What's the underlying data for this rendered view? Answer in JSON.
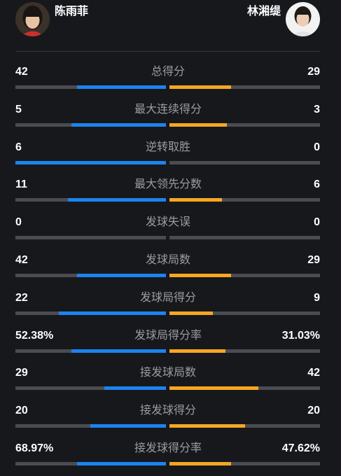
{
  "players": {
    "left": {
      "name": "陈雨菲",
      "avatar_icon": "player-portrait-icon"
    },
    "right": {
      "name": "林湘缇",
      "avatar_icon": "player-portrait-icon"
    }
  },
  "colors": {
    "left_bar": "#1b84f0",
    "right_bar": "#f6a723",
    "track": "#4a4c51",
    "background": "#17181c"
  },
  "stats": [
    {
      "label": "总得分",
      "left": "42",
      "right": "29",
      "left_fill": 0.59,
      "right_fill": 0.41
    },
    {
      "label": "最大连续得分",
      "left": "5",
      "right": "3",
      "left_fill": 0.63,
      "right_fill": 0.38
    },
    {
      "label": "逆转取胜",
      "left": "6",
      "right": "0",
      "left_fill": 1.0,
      "right_fill": 0.0
    },
    {
      "label": "最大领先分数",
      "left": "11",
      "right": "6",
      "left_fill": 0.65,
      "right_fill": 0.35
    },
    {
      "label": "发球失误",
      "left": "0",
      "right": "0",
      "left_fill": 0.0,
      "right_fill": 0.0
    },
    {
      "label": "发球局数",
      "left": "42",
      "right": "29",
      "left_fill": 0.59,
      "right_fill": 0.41
    },
    {
      "label": "发球局得分",
      "left": "22",
      "right": "9",
      "left_fill": 0.71,
      "right_fill": 0.29
    },
    {
      "label": "发球局得分率",
      "left": "52.38%",
      "right": "31.03%",
      "left_fill": 0.63,
      "right_fill": 0.37
    },
    {
      "label": "接发球局数",
      "left": "29",
      "right": "42",
      "left_fill": 0.41,
      "right_fill": 0.59
    },
    {
      "label": "接发球得分",
      "left": "20",
      "right": "20",
      "left_fill": 0.5,
      "right_fill": 0.5
    },
    {
      "label": "接发球得分率",
      "left": "68.97%",
      "right": "47.62%",
      "left_fill": 0.59,
      "right_fill": 0.41
    }
  ]
}
